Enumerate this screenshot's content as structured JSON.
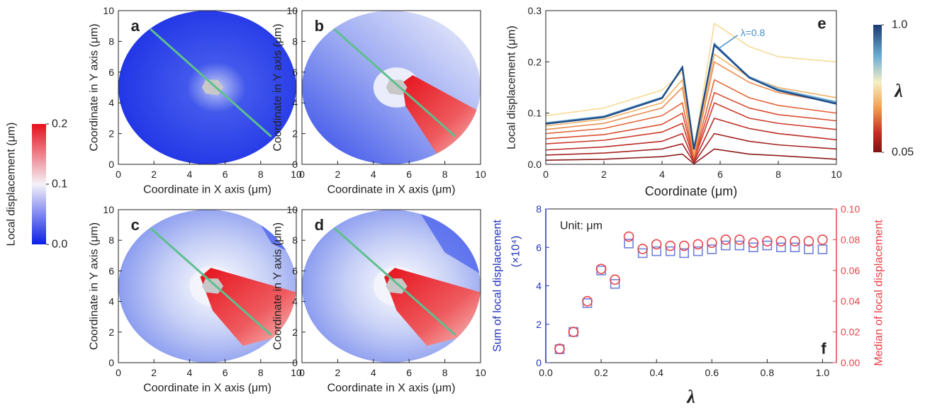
{
  "chart_data": [
    {
      "type": "colorbar",
      "label": "Local displacement (μm)",
      "ylim": [
        0,
        0.2
      ],
      "yticks": [
        {
          "value": 0,
          "label": "0.0"
        },
        0.1,
        0.2
      ]
    },
    {
      "type": "contour",
      "panel": "a",
      "xlabel": "Coordinate in X axis (μm)",
      "ylabel": "Coordinate in Y axis (μm)",
      "xlim": [
        0,
        10
      ],
      "ylim": [
        0,
        10
      ],
      "xticks": [
        0,
        2,
        4,
        6,
        8,
        10
      ],
      "yticks": [
        0,
        2,
        4,
        6,
        8,
        10
      ]
    },
    {
      "type": "contour",
      "panel": "b",
      "xlabel": "Coordinate in X axis (μm)",
      "ylabel": "Coordinate in Y axis (μm)",
      "xlim": [
        0,
        10
      ],
      "ylim": [
        0,
        10
      ],
      "xticks": [
        0,
        2,
        4,
        6,
        8,
        10
      ],
      "yticks": [
        0,
        2,
        4,
        6,
        8,
        10
      ]
    },
    {
      "type": "contour",
      "panel": "c",
      "xlabel": "Coordinate in X axis (μm)",
      "ylabel": "Coordinate in Y axis (μm)",
      "xlim": [
        0,
        10
      ],
      "ylim": [
        0,
        10
      ],
      "xticks": [
        0,
        2,
        4,
        6,
        8,
        10
      ],
      "yticks": [
        0,
        2,
        4,
        6,
        8,
        10
      ]
    },
    {
      "type": "contour",
      "panel": "d",
      "xlabel": "Coordinate in X axis (μm)",
      "ylabel": "Coordinate in Y axis (μm)",
      "xlim": [
        0,
        10
      ],
      "ylim": [
        0,
        10
      ],
      "xticks": [
        0,
        2,
        4,
        6,
        8,
        10
      ],
      "yticks": [
        0,
        2,
        4,
        6,
        8,
        10
      ]
    },
    {
      "type": "line",
      "panel": "e",
      "xlabel": "Coordinate (μm)",
      "ylabel": "Local displacement (μm)",
      "xlim": [
        0,
        10
      ],
      "ylim": [
        0,
        0.3
      ],
      "xticks": [
        0,
        2,
        4,
        6,
        8,
        10
      ],
      "yticks": [
        {
          "value": 0,
          "label": "0.0"
        },
        0.1,
        0.2,
        0.3
      ],
      "annotation": "λ=0.8",
      "colorbar": {
        "label": "λ",
        "lim": [
          0.05,
          1
        ],
        "ticks": [
          0.05,
          {
            "value": 1,
            "label": "1.0"
          }
        ]
      },
      "x": [
        0,
        2,
        4,
        4.7,
        5.1,
        5.8,
        7,
        8,
        10
      ],
      "series": [
        {
          "color": "#8b1a1a",
          "values": [
            0.008,
            0.01,
            0.015,
            0.02,
            0.001,
            0.03,
            0.02,
            0.017,
            0.01
          ]
        },
        {
          "color": "#a52222",
          "values": [
            0.018,
            0.022,
            0.03,
            0.04,
            0.003,
            0.06,
            0.045,
            0.038,
            0.03
          ]
        },
        {
          "color": "#bb2b26",
          "values": [
            0.028,
            0.034,
            0.045,
            0.06,
            0.005,
            0.09,
            0.07,
            0.06,
            0.048
          ]
        },
        {
          "color": "#cc3a2a",
          "values": [
            0.04,
            0.047,
            0.063,
            0.08,
            0.008,
            0.12,
            0.09,
            0.08,
            0.068
          ]
        },
        {
          "color": "#d94e32",
          "values": [
            0.05,
            0.058,
            0.078,
            0.1,
            0.01,
            0.14,
            0.11,
            0.097,
            0.085
          ]
        },
        {
          "color": "#e2663c",
          "values": [
            0.06,
            0.07,
            0.095,
            0.12,
            0.012,
            0.165,
            0.13,
            0.115,
            0.1
          ]
        },
        {
          "color": "#eb8a4a",
          "values": [
            0.068,
            0.08,
            0.11,
            0.15,
            0.015,
            0.2,
            0.16,
            0.14,
            0.12
          ]
        },
        {
          "color": "#f2b063",
          "values": [
            0.075,
            0.088,
            0.12,
            0.165,
            0.02,
            0.215,
            0.17,
            0.15,
            0.13
          ]
        },
        {
          "color": "#f6db95",
          "values": [
            0.095,
            0.11,
            0.145,
            0.18,
            0.03,
            0.275,
            0.23,
            0.21,
            0.2
          ]
        },
        {
          "color": "#8dc0dc",
          "values": [
            0.081,
            0.094,
            0.131,
            0.188,
            0.031,
            0.232,
            0.171,
            0.147,
            0.122
          ]
        },
        {
          "color": "#4a86bb",
          "values": [
            0.08,
            0.093,
            0.13,
            0.19,
            0.03,
            0.235,
            0.17,
            0.145,
            0.12
          ]
        },
        {
          "color": "#1f4a85",
          "values": [
            0.079,
            0.092,
            0.129,
            0.189,
            0.029,
            0.233,
            0.169,
            0.144,
            0.118
          ]
        }
      ]
    },
    {
      "type": "scatter",
      "panel": "f",
      "xlabel": "λ",
      "ylabel": [
        "Sum of local displacement",
        "(×10⁴)"
      ],
      "y2label": "Median of local displacement",
      "annotation": "Unit: μm",
      "xlim": [
        0,
        1.05
      ],
      "xticks": [
        {
          "value": 0,
          "label": "0.0"
        },
        0.2,
        0.4,
        0.6,
        0.8,
        {
          "value": 1,
          "label": "1.0"
        }
      ],
      "ylim": [
        0,
        8
      ],
      "yticks": [
        0,
        2,
        4,
        6,
        8
      ],
      "y2lim": [
        0,
        0.1
      ],
      "y2ticks": [
        {
          "value": 0,
          "label": "0.00"
        },
        {
          "value": 0.02,
          "label": "0.02"
        },
        {
          "value": 0.04,
          "label": "0.04"
        },
        {
          "value": 0.06,
          "label": "0.06"
        },
        {
          "value": 0.08,
          "label": "0.08"
        },
        {
          "value": 0.1,
          "label": "0.10"
        }
      ],
      "x": [
        0.05,
        0.1,
        0.15,
        0.2,
        0.25,
        0.3,
        0.35,
        0.4,
        0.45,
        0.5,
        0.55,
        0.6,
        0.65,
        0.7,
        0.75,
        0.8,
        0.85,
        0.9,
        0.95,
        1.0
      ],
      "series": [
        {
          "axis": "y",
          "color": "#6f80d8",
          "marker": "square",
          "values": [
            0.7,
            1.6,
            3.1,
            4.8,
            4.1,
            6.2,
            5.7,
            5.8,
            5.8,
            5.7,
            5.8,
            5.9,
            6.1,
            6.1,
            6.0,
            6.1,
            6.0,
            6.0,
            5.9,
            5.9
          ]
        },
        {
          "axis": "y2",
          "color": "#e8424a",
          "marker": "circle",
          "values": [
            0.009,
            0.02,
            0.04,
            0.061,
            0.054,
            0.082,
            0.074,
            0.077,
            0.076,
            0.076,
            0.077,
            0.078,
            0.08,
            0.08,
            0.078,
            0.079,
            0.079,
            0.079,
            0.079,
            0.08
          ]
        }
      ]
    }
  ]
}
